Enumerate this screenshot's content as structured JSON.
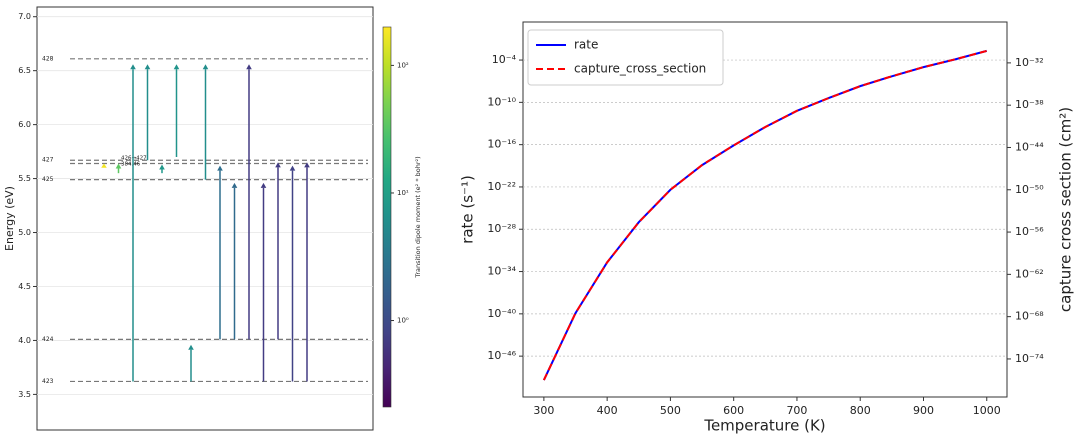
{
  "chart_data": [
    {
      "type": "transitions",
      "ylabel": "Energy (eV)",
      "ylim": [
        3.17,
        7.09
      ],
      "yticks": [
        3.5,
        {
          "value": 4,
          "label": "4.0"
        },
        4.5,
        {
          "value": 5,
          "label": "5.0"
        },
        5.5,
        {
          "value": 6,
          "label": "6.0"
        },
        6.5,
        {
          "value": 7,
          "label": "7.0"
        }
      ],
      "grid": true,
      "levels": {
        "labels": [
          "423",
          "424",
          "425",
          null,
          "427",
          "428"
        ],
        "energies": [
          3.62,
          4.01,
          5.49,
          5.64,
          5.67,
          6.61
        ]
      },
      "annotations": [
        "426→427",
        "384.46"
      ],
      "transitions": {
        "start": [
          5.6,
          5.55,
          3.62,
          5.67,
          5.55,
          5.7,
          3.62,
          5.49,
          4.01,
          4.01,
          4.01,
          3.62,
          4.01,
          3.62,
          3.62
        ],
        "end": [
          5.64,
          5.64,
          6.56,
          6.56,
          5.63,
          6.56,
          3.96,
          6.56,
          5.62,
          5.46,
          6.56,
          5.46,
          5.65,
          5.62,
          5.65
        ],
        "dipole": [
          180,
          35,
          6,
          6,
          8,
          7,
          6,
          6,
          2.5,
          2.2,
          0.7,
          0.7,
          0.7,
          0.8,
          0.7
        ]
      },
      "colorbar": {
        "label": "Transition dipole moment (e² * bohr²)",
        "colormap": "viridis",
        "log": true,
        "lim": [
          0.21,
          200
        ],
        "ticks": [
          {
            "value": 1,
            "label": "10⁰"
          },
          {
            "value": 10,
            "label": "10¹"
          },
          {
            "value": 100,
            "label": "10²"
          }
        ]
      }
    },
    {
      "type": "line",
      "xlabel": "Temperature (K)",
      "ylabel": "rate (s⁻¹)",
      "ylabel_color": "#0000ff",
      "y2label": "capture cross section (cm²)",
      "y2label_color": "#ff0000",
      "x": [
        300,
        350,
        400,
        450,
        500,
        550,
        600,
        650,
        700,
        750,
        800,
        850,
        900,
        950,
        1000
      ],
      "xlim": [
        267,
        1032
      ],
      "xticks": [
        300,
        400,
        500,
        600,
        700,
        800,
        900,
        1000
      ],
      "yscale": "log",
      "ylim": [
        1.6e-52,
        25
      ],
      "yticks": [
        {
          "value": 0.0001,
          "label": "10⁻⁴"
        },
        {
          "value": 1e-10,
          "label": "10⁻¹⁰"
        },
        {
          "value": 1e-16,
          "label": "10⁻¹⁶"
        },
        {
          "value": 1e-22,
          "label": "10⁻²²"
        },
        {
          "value": 1e-28,
          "label": "10⁻²⁸"
        },
        {
          "value": 1e-34,
          "label": "10⁻³⁴"
        },
        {
          "value": 1e-40,
          "label": "10⁻⁴⁰"
        },
        {
          "value": 1e-46,
          "label": "10⁻⁴⁶"
        }
      ],
      "y2lim": [
        4e-80,
        6.3e-27
      ],
      "y2ticks": [
        {
          "value": 1e-32,
          "label": "10⁻³²"
        },
        {
          "value": 1e-38,
          "label": "10⁻³⁸"
        },
        {
          "value": 1e-44,
          "label": "10⁻⁴⁴"
        },
        {
          "value": 1e-50,
          "label": "10⁻⁵⁰"
        },
        {
          "value": 1e-56,
          "label": "10⁻⁵⁶"
        },
        {
          "value": 1e-62,
          "label": "10⁻⁶²"
        },
        {
          "value": 1e-68,
          "label": "10⁻⁶⁸"
        },
        {
          "value": 1e-74,
          "label": "10⁻⁷⁴"
        }
      ],
      "grid": "y",
      "legend": "upper left",
      "series": [
        {
          "name": "rate",
          "color": "#0000ff",
          "linestyle": "solid",
          "axis": "y",
          "values": [
            4e-50,
            1.26e-40,
            2e-33,
            1e-27,
            4e-23,
            1.26e-19,
            7.9e-17,
            3.2e-14,
            6.3e-12,
            4e-10,
            2e-08,
            5e-07,
            1e-05,
            0.000126,
            0.002
          ]
        },
        {
          "name": "capture_cross_section",
          "color": "#ff0000",
          "linestyle": "dashed",
          "axis": "y2",
          "values": [
            1e-77,
            3.2e-68,
            5e-61,
            2.5e-55,
            1e-50,
            3.2e-47,
            2e-44,
            8e-42,
            1.6e-39,
            1e-37,
            5e-36,
            1.26e-34,
            2.5e-33,
            3.2e-32,
            5e-31
          ]
        }
      ]
    }
  ]
}
